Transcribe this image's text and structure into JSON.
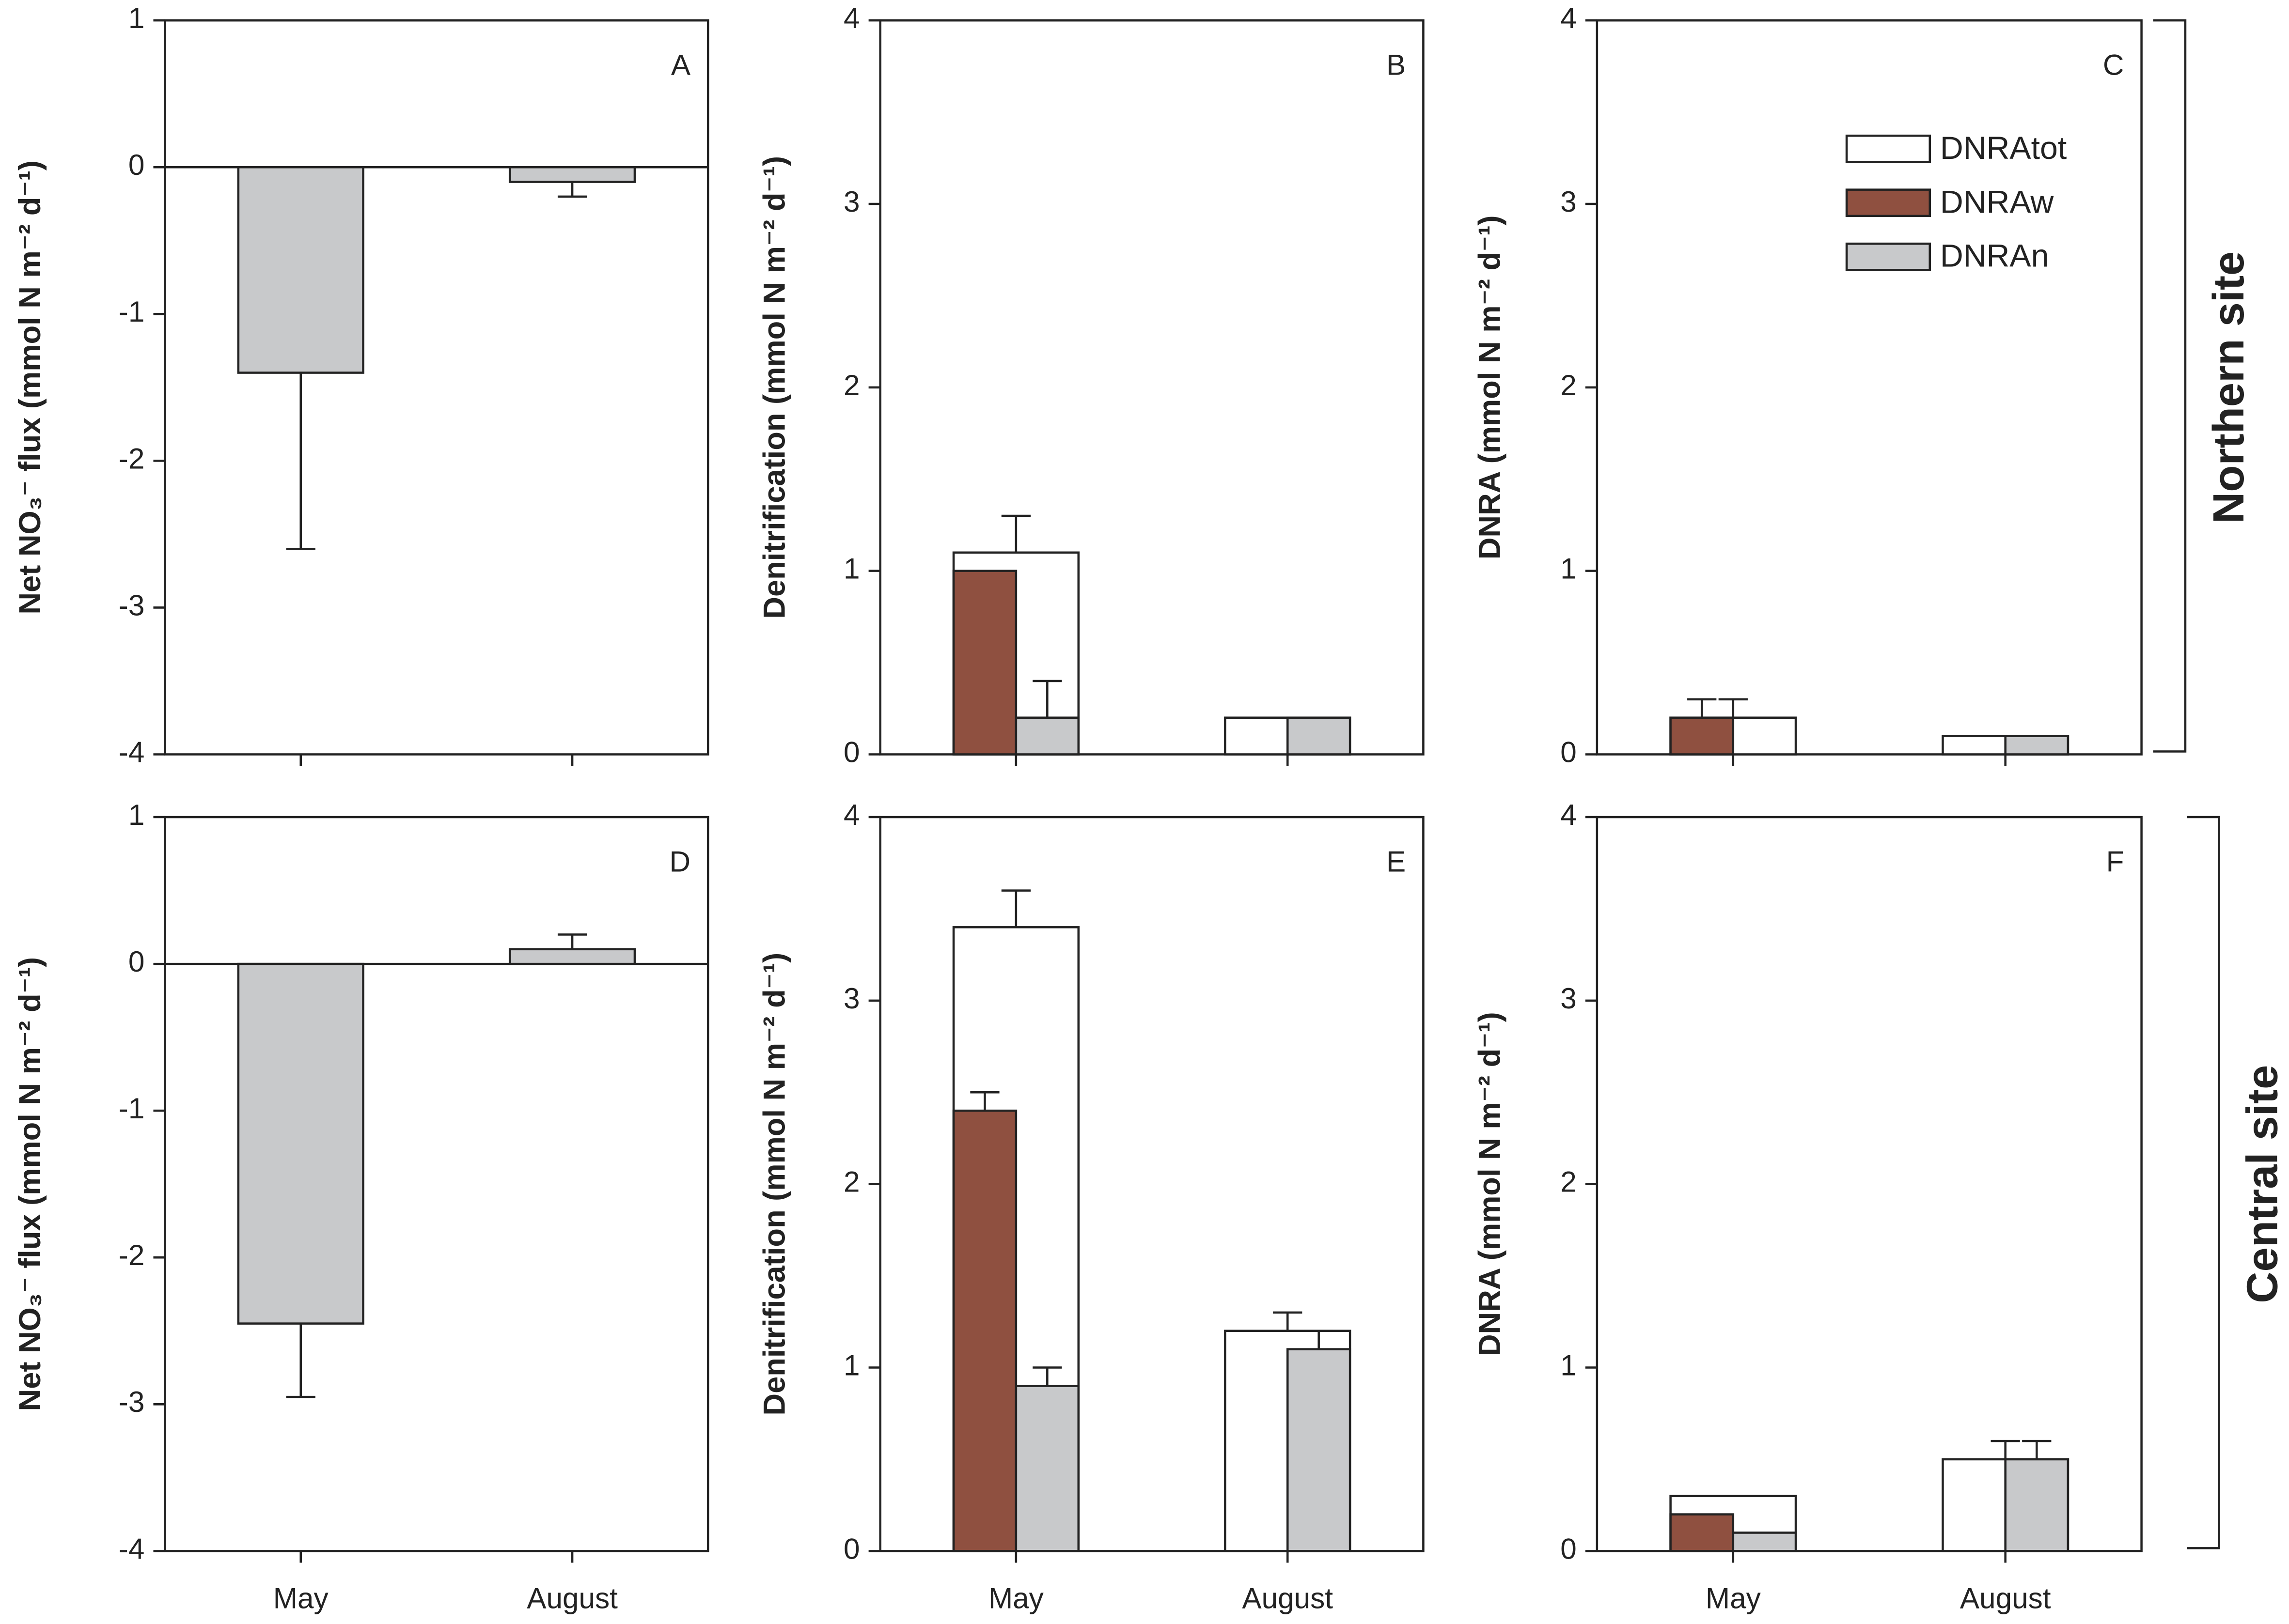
{
  "chart_data": [
    {
      "type": "bar",
      "y_label": "Net NO₃⁻ flux (mmol N m⁻² d⁻¹)",
      "annotation": "A",
      "categories": [
        null,
        null
      ],
      "ylim": [
        -4,
        1
      ],
      "yticks": [
        -4,
        -3,
        -2,
        -1,
        0,
        1
      ],
      "series": [
        {
          "color": "#c8c9cb",
          "values": [
            -1.4,
            -0.1
          ],
          "errors": [
            1.2,
            0.1
          ]
        }
      ]
    },
    {
      "type": "bar",
      "y_label": "Denitrification (mmol N m⁻² d⁻¹)",
      "annotation": "B",
      "categories": [
        null,
        null
      ],
      "ylim": [
        0,
        4
      ],
      "yticks": [
        0,
        1,
        2,
        3,
        4
      ],
      "series": [
        {
          "color": "#ffffff",
          "values": [
            1.1,
            0.2
          ],
          "errors": [
            0.2,
            null
          ]
        },
        {
          "color": "#8f5040",
          "values": [
            1.0,
            0
          ],
          "errors": [
            null,
            null
          ]
        },
        {
          "color": "#c8c9cb",
          "values": [
            0.2,
            0.2
          ],
          "errors": [
            0.2,
            null
          ]
        }
      ]
    },
    {
      "type": "bar",
      "y_label": "DNRA (mmol N m⁻² d⁻¹)",
      "annotation": "C",
      "site": "Northern site",
      "legend": "upper right",
      "categories": [
        null,
        null
      ],
      "ylim": [
        0,
        4
      ],
      "yticks": [
        0,
        1,
        2,
        3,
        4
      ],
      "series": [
        {
          "name": "DNRAtot",
          "color": "#ffffff",
          "values": [
            0.2,
            0.1
          ],
          "errors": [
            0.1,
            null
          ]
        },
        {
          "name": "DNRAw",
          "color": "#8f5040",
          "values": [
            0.2,
            0
          ],
          "errors": [
            0.1,
            null
          ]
        },
        {
          "name": "DNRAn",
          "color": "#c8c9cb",
          "values": [
            0,
            0.1
          ],
          "errors": [
            null,
            null
          ]
        }
      ]
    },
    {
      "type": "bar",
      "y_label": "Net NO₃⁻ flux (mmol N m⁻² d⁻¹)",
      "annotation": "D",
      "categories": [
        "May",
        "August"
      ],
      "ylim": [
        -4,
        1
      ],
      "yticks": [
        -4,
        -3,
        -2,
        -1,
        0,
        1
      ],
      "series": [
        {
          "color": "#c8c9cb",
          "values": [
            -2.45,
            0.1
          ],
          "errors": [
            0.5,
            0.1
          ]
        }
      ]
    },
    {
      "type": "bar",
      "y_label": "Denitrification (mmol N m⁻² d⁻¹)",
      "annotation": "E",
      "categories": [
        "May",
        "August"
      ],
      "ylim": [
        0,
        4
      ],
      "yticks": [
        0,
        1,
        2,
        3,
        4
      ],
      "series": [
        {
          "color": "#ffffff",
          "values": [
            3.4,
            1.2
          ],
          "errors": [
            0.2,
            0.1
          ]
        },
        {
          "color": "#8f5040",
          "values": [
            2.4,
            0
          ],
          "errors": [
            0.1,
            null
          ]
        },
        {
          "color": "#c8c9cb",
          "values": [
            0.9,
            1.1
          ],
          "errors": [
            0.1,
            0.1
          ]
        }
      ]
    },
    {
      "type": "bar",
      "y_label": "DNRA (mmol N m⁻² d⁻¹)",
      "annotation": "F",
      "site": "Central site",
      "categories": [
        "May",
        "August"
      ],
      "ylim": [
        0,
        4
      ],
      "yticks": [
        0,
        1,
        2,
        3,
        4
      ],
      "series": [
        {
          "color": "#ffffff",
          "values": [
            0.3,
            0.5
          ],
          "errors": [
            null,
            0.1
          ]
        },
        {
          "color": "#8f5040",
          "values": [
            0.2,
            0
          ],
          "errors": [
            null,
            null
          ]
        },
        {
          "color": "#c8c9cb",
          "values": [
            0.1,
            0.5
          ],
          "errors": [
            null,
            0.1
          ]
        }
      ]
    }
  ]
}
